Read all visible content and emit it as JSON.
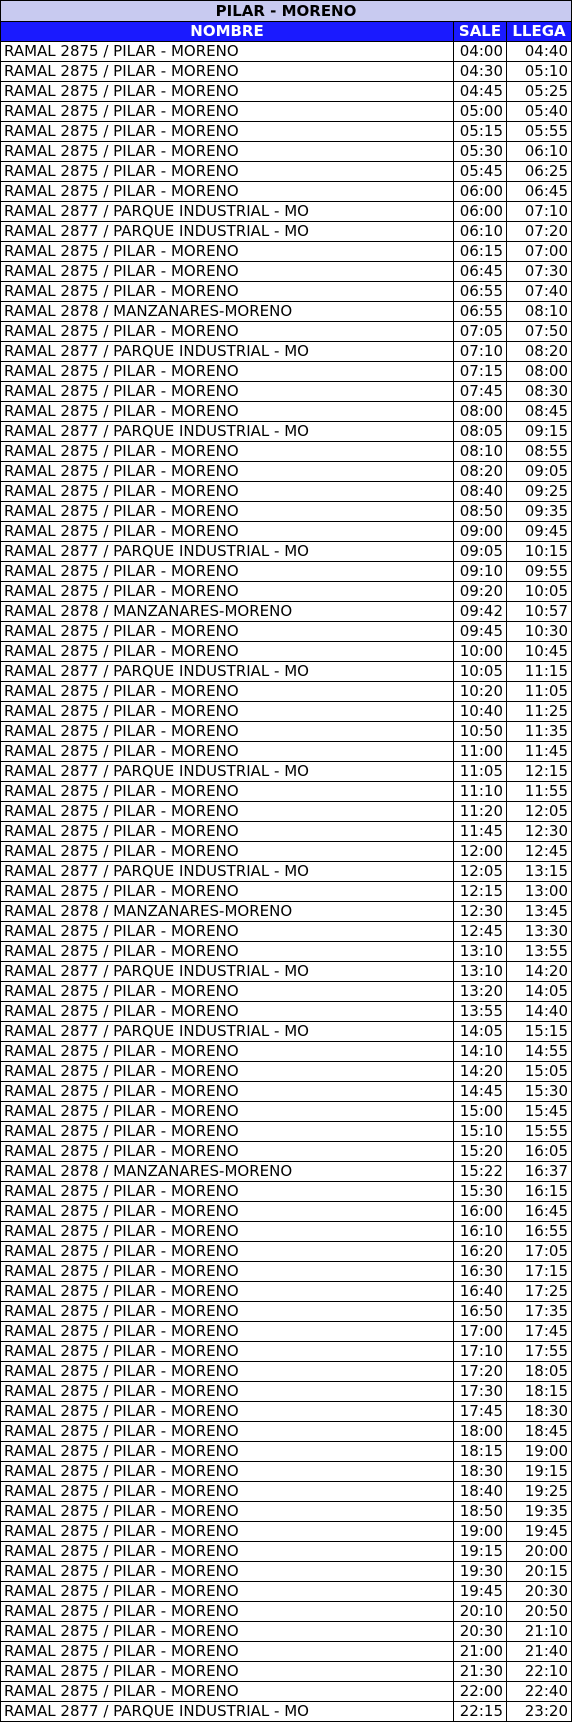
{
  "title": "PILAR - MORENO",
  "headers": {
    "nombre": "NOMBRE",
    "sale": "SALE",
    "llega": "LLEGA"
  },
  "rows": [
    [
      "RAMAL 2875 / PILAR - MORENO",
      "04:00",
      "04:40"
    ],
    [
      "RAMAL 2875 / PILAR - MORENO",
      "04:30",
      "05:10"
    ],
    [
      "RAMAL 2875 / PILAR - MORENO",
      "04:45",
      "05:25"
    ],
    [
      "RAMAL 2875 / PILAR - MORENO",
      "05:00",
      "05:40"
    ],
    [
      "RAMAL 2875 / PILAR - MORENO",
      "05:15",
      "05:55"
    ],
    [
      "RAMAL 2875 / PILAR - MORENO",
      "05:30",
      "06:10"
    ],
    [
      "RAMAL 2875 / PILAR - MORENO",
      "05:45",
      "06:25"
    ],
    [
      "RAMAL 2875 / PILAR - MORENO",
      "06:00",
      "06:45"
    ],
    [
      "RAMAL 2877 / PARQUE INDUSTRIAL - MO",
      "06:00",
      "07:10"
    ],
    [
      "RAMAL 2877 / PARQUE INDUSTRIAL - MO",
      "06:10",
      "07:20"
    ],
    [
      "RAMAL 2875 / PILAR - MORENO",
      "06:15",
      "07:00"
    ],
    [
      "RAMAL 2875 / PILAR - MORENO",
      "06:45",
      "07:30"
    ],
    [
      "RAMAL 2875 / PILAR - MORENO",
      "06:55",
      "07:40"
    ],
    [
      "RAMAL 2878 / MANZANARES-MORENO",
      "06:55",
      "08:10"
    ],
    [
      "RAMAL 2875 / PILAR - MORENO",
      "07:05",
      "07:50"
    ],
    [
      "RAMAL 2877 / PARQUE INDUSTRIAL - MO",
      "07:10",
      "08:20"
    ],
    [
      "RAMAL 2875 / PILAR - MORENO",
      "07:15",
      "08:00"
    ],
    [
      "RAMAL 2875 / PILAR - MORENO",
      "07:45",
      "08:30"
    ],
    [
      "RAMAL 2875 / PILAR - MORENO",
      "08:00",
      "08:45"
    ],
    [
      "RAMAL 2877 / PARQUE INDUSTRIAL - MO",
      "08:05",
      "09:15"
    ],
    [
      "RAMAL 2875 / PILAR - MORENO",
      "08:10",
      "08:55"
    ],
    [
      "RAMAL 2875 / PILAR - MORENO",
      "08:20",
      "09:05"
    ],
    [
      "RAMAL 2875 / PILAR - MORENO",
      "08:40",
      "09:25"
    ],
    [
      "RAMAL 2875 / PILAR - MORENO",
      "08:50",
      "09:35"
    ],
    [
      "RAMAL 2875 / PILAR - MORENO",
      "09:00",
      "09:45"
    ],
    [
      "RAMAL 2877 / PARQUE INDUSTRIAL - MO",
      "09:05",
      "10:15"
    ],
    [
      "RAMAL 2875 / PILAR - MORENO",
      "09:10",
      "09:55"
    ],
    [
      "RAMAL 2875 / PILAR - MORENO",
      "09:20",
      "10:05"
    ],
    [
      "RAMAL 2878 / MANZANARES-MORENO",
      "09:42",
      "10:57"
    ],
    [
      "RAMAL 2875 / PILAR - MORENO",
      "09:45",
      "10:30"
    ],
    [
      "RAMAL 2875 / PILAR - MORENO",
      "10:00",
      "10:45"
    ],
    [
      "RAMAL 2877 / PARQUE INDUSTRIAL - MO",
      "10:05",
      "11:15"
    ],
    [
      "RAMAL 2875 / PILAR - MORENO",
      "10:20",
      "11:05"
    ],
    [
      "RAMAL 2875 / PILAR - MORENO",
      "10:40",
      "11:25"
    ],
    [
      "RAMAL 2875 / PILAR - MORENO",
      "10:50",
      "11:35"
    ],
    [
      "RAMAL 2875 / PILAR - MORENO",
      "11:00",
      "11:45"
    ],
    [
      "RAMAL 2877 / PARQUE INDUSTRIAL - MO",
      "11:05",
      "12:15"
    ],
    [
      "RAMAL 2875 / PILAR - MORENO",
      "11:10",
      "11:55"
    ],
    [
      "RAMAL 2875 / PILAR - MORENO",
      "11:20",
      "12:05"
    ],
    [
      "RAMAL 2875 / PILAR - MORENO",
      "11:45",
      "12:30"
    ],
    [
      "RAMAL 2875 / PILAR - MORENO",
      "12:00",
      "12:45"
    ],
    [
      "RAMAL 2877 / PARQUE INDUSTRIAL - MO",
      "12:05",
      "13:15"
    ],
    [
      "RAMAL 2875 / PILAR - MORENO",
      "12:15",
      "13:00"
    ],
    [
      "RAMAL 2878 / MANZANARES-MORENO",
      "12:30",
      "13:45"
    ],
    [
      "RAMAL 2875 / PILAR - MORENO",
      "12:45",
      "13:30"
    ],
    [
      "RAMAL 2875 / PILAR - MORENO",
      "13:10",
      "13:55"
    ],
    [
      "RAMAL 2877 / PARQUE INDUSTRIAL - MO",
      "13:10",
      "14:20"
    ],
    [
      "RAMAL 2875 / PILAR - MORENO",
      "13:20",
      "14:05"
    ],
    [
      "RAMAL 2875 / PILAR - MORENO",
      "13:55",
      "14:40"
    ],
    [
      "RAMAL 2877 / PARQUE INDUSTRIAL - MO",
      "14:05",
      "15:15"
    ],
    [
      "RAMAL 2875 / PILAR - MORENO",
      "14:10",
      "14:55"
    ],
    [
      "RAMAL 2875 / PILAR - MORENO",
      "14:20",
      "15:05"
    ],
    [
      "RAMAL 2875 / PILAR - MORENO",
      "14:45",
      "15:30"
    ],
    [
      "RAMAL 2875 / PILAR - MORENO",
      "15:00",
      "15:45"
    ],
    [
      "RAMAL 2875 / PILAR - MORENO",
      "15:10",
      "15:55"
    ],
    [
      "RAMAL 2875 / PILAR - MORENO",
      "15:20",
      "16:05"
    ],
    [
      "RAMAL 2878 / MANZANARES-MORENO",
      "15:22",
      "16:37"
    ],
    [
      "RAMAL 2875 / PILAR - MORENO",
      "15:30",
      "16:15"
    ],
    [
      "RAMAL 2875 / PILAR - MORENO",
      "16:00",
      "16:45"
    ],
    [
      "RAMAL 2875 / PILAR - MORENO",
      "16:10",
      "16:55"
    ],
    [
      "RAMAL 2875 / PILAR - MORENO",
      "16:20",
      "17:05"
    ],
    [
      "RAMAL 2875 / PILAR - MORENO",
      "16:30",
      "17:15"
    ],
    [
      "RAMAL 2875 / PILAR - MORENO",
      "16:40",
      "17:25"
    ],
    [
      "RAMAL 2875 / PILAR - MORENO",
      "16:50",
      "17:35"
    ],
    [
      "RAMAL 2875 / PILAR - MORENO",
      "17:00",
      "17:45"
    ],
    [
      "RAMAL 2875 / PILAR - MORENO",
      "17:10",
      "17:55"
    ],
    [
      "RAMAL 2875 / PILAR - MORENO",
      "17:20",
      "18:05"
    ],
    [
      "RAMAL 2875 / PILAR - MORENO",
      "17:30",
      "18:15"
    ],
    [
      "RAMAL 2875 / PILAR - MORENO",
      "17:45",
      "18:30"
    ],
    [
      "RAMAL 2875 / PILAR - MORENO",
      "18:00",
      "18:45"
    ],
    [
      "RAMAL 2875 / PILAR - MORENO",
      "18:15",
      "19:00"
    ],
    [
      "RAMAL 2875 / PILAR - MORENO",
      "18:30",
      "19:15"
    ],
    [
      "RAMAL 2875 / PILAR - MORENO",
      "18:40",
      "19:25"
    ],
    [
      "RAMAL 2875 / PILAR - MORENO",
      "18:50",
      "19:35"
    ],
    [
      "RAMAL 2875 / PILAR - MORENO",
      "19:00",
      "19:45"
    ],
    [
      "RAMAL 2875 / PILAR - MORENO",
      "19:15",
      "20:00"
    ],
    [
      "RAMAL 2875 / PILAR - MORENO",
      "19:30",
      "20:15"
    ],
    [
      "RAMAL 2875 / PILAR - MORENO",
      "19:45",
      "20:30"
    ],
    [
      "RAMAL 2875 / PILAR - MORENO",
      "20:10",
      "20:50"
    ],
    [
      "RAMAL 2875 / PILAR - MORENO",
      "20:30",
      "21:10"
    ],
    [
      "RAMAL 2875 / PILAR - MORENO",
      "21:00",
      "21:40"
    ],
    [
      "RAMAL 2875 / PILAR - MORENO",
      "21:30",
      "22:10"
    ],
    [
      "RAMAL 2875 / PILAR - MORENO",
      "22:00",
      "22:40"
    ],
    [
      "RAMAL 2877 / PARQUE INDUSTRIAL - MO",
      "22:15",
      "23:20"
    ]
  ]
}
